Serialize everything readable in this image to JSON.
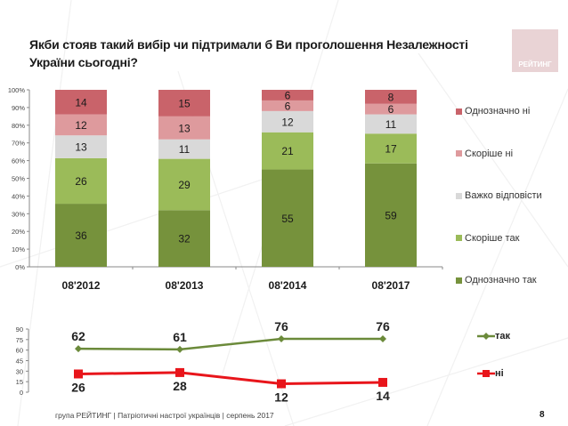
{
  "title": "Якби стояв такий вибір чи підтримали б Ви проголошення Незалежності України сьогодні?",
  "logo_text": "РЕЙТИНГ",
  "footer": "група РЕЙТИНГ  | Патріотичні настрої українців |  серпень 2017",
  "page_number": "8",
  "colors": {
    "definitely_no": "#c9636a",
    "rather_no": "#de9a9d",
    "hard_to_say": "#d9d9d9",
    "rather_yes": "#9bbb59",
    "definitely_yes": "#76923c",
    "line_yes": "#6b8a3a",
    "line_no": "#e8151b"
  },
  "chart_data": [
    {
      "type": "bar",
      "stacked": true,
      "title": "",
      "xlabel": "",
      "ylabel": "",
      "categories": [
        "08'2012",
        "08'2013",
        "08'2014",
        "08'2017"
      ],
      "yticks": [
        "0%",
        "10%",
        "20%",
        "30%",
        "40%",
        "50%",
        "60%",
        "70%",
        "80%",
        "90%",
        "100%"
      ],
      "ylim": [
        0,
        100
      ],
      "grid": false,
      "legend_position": "right",
      "series": [
        {
          "name": "Однозначно так",
          "color_key": "definitely_yes",
          "values": [
            36,
            32,
            55,
            59
          ]
        },
        {
          "name": "Скоріше так",
          "color_key": "rather_yes",
          "values": [
            26,
            29,
            21,
            17
          ]
        },
        {
          "name": "Важко відповісти",
          "color_key": "hard_to_say",
          "values": [
            13,
            11,
            12,
            11
          ]
        },
        {
          "name": "Скоріше ні",
          "color_key": "rather_no",
          "values": [
            12,
            13,
            6,
            6
          ]
        },
        {
          "name": "Однозначно ні",
          "color_key": "definitely_no",
          "values": [
            14,
            15,
            6,
            8
          ]
        }
      ],
      "legend_order": [
        "Однозначно ні",
        "Скоріше ні",
        "Важко відповісти",
        "Скоріше так",
        "Однозначно так"
      ]
    },
    {
      "type": "line",
      "title": "",
      "xlabel": "",
      "ylabel": "",
      "categories": [
        "08'2012",
        "08'2013",
        "08'2014",
        "08'2017"
      ],
      "yticks": [
        "0",
        "15",
        "30",
        "45",
        "60",
        "75",
        "90"
      ],
      "ylim": [
        0,
        90
      ],
      "grid": false,
      "legend_position": "right",
      "series": [
        {
          "name": "так",
          "color_key": "line_yes",
          "marker": "diamond",
          "values": [
            62,
            61,
            76,
            76
          ]
        },
        {
          "name": "ні",
          "color_key": "line_no",
          "marker": "square",
          "values": [
            26,
            28,
            12,
            14
          ]
        }
      ]
    }
  ]
}
